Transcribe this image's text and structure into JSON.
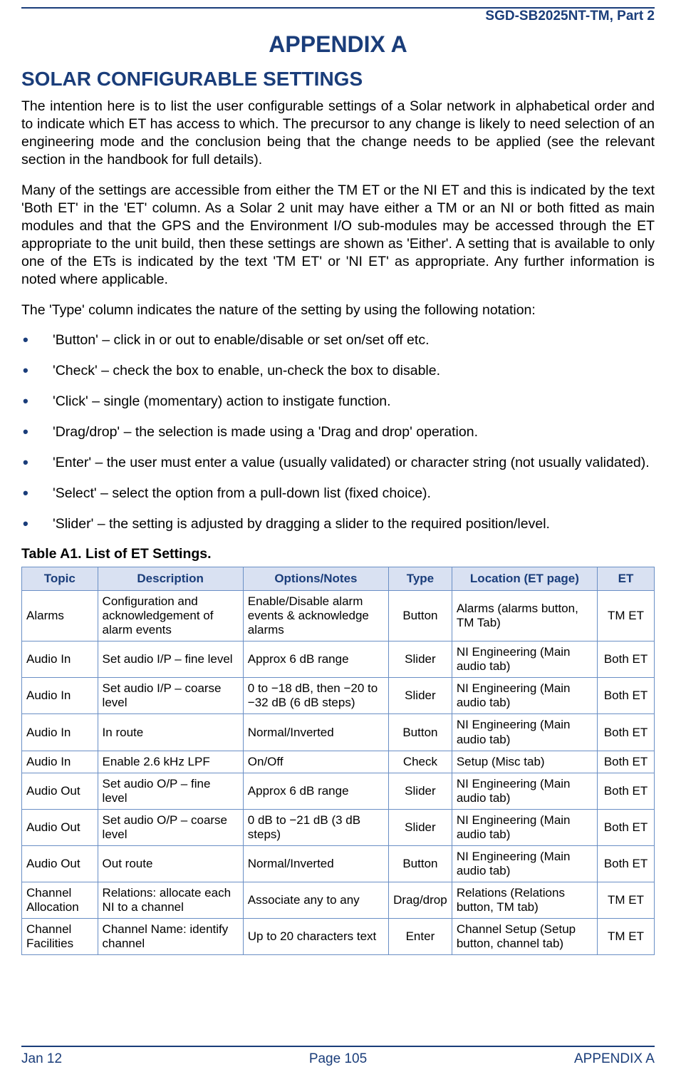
{
  "header": {
    "doc_id": "SGD-SB2025NT-TM, Part 2",
    "appendix_title": "APPENDIX A",
    "section_title": "SOLAR CONFIGURABLE SETTINGS"
  },
  "paragraphs": {
    "p1": "The intention here is to list the user configurable settings of a Solar network in alphabetical order and to indicate which ET has access to which.  The precursor to any change is likely to need selection of an engineering mode and the conclusion being that the change needs to be applied (see the relevant section in the handbook for full details).",
    "p2": "Many of the settings are accessible from either the TM ET or the NI ET and this is indicated by the text 'Both ET' in the 'ET' column.  As a Solar 2 unit may have either a TM or an NI or both fitted as main modules and that the GPS and the Environment I/O sub-modules may be accessed through the ET appropriate to the unit build, then these settings are shown as 'Either'.  A setting that is available to only one of the ETs is indicated by the text 'TM ET' or 'NI ET' as appropriate.  Any further information is noted where applicable.",
    "p3": "The 'Type' column indicates the nature of the setting by using the following notation:"
  },
  "bullets": [
    "'Button' – click in or out to enable/disable or set on/set off etc.",
    "'Check' – check the box to enable, un-check the box to disable.",
    "'Click' – single (momentary) action to instigate function.",
    "'Drag/drop' – the selection is made using a 'Drag and drop' operation.",
    "'Enter' – the user must enter a value (usually validated) or character string (not usually validated).",
    "'Select' – select the option from a pull-down list (fixed choice).",
    "'Slider' – the setting is adjusted by dragging a slider to the required position/level."
  ],
  "table": {
    "caption": "Table A1.  List of ET Settings.",
    "headers": [
      "Topic",
      "Description",
      "Options/Notes",
      "Type",
      "Location (ET page)",
      "ET"
    ],
    "col_widths": [
      "12%",
      "23%",
      "23%",
      "10%",
      "23%",
      "9%"
    ],
    "rows": [
      [
        "Alarms",
        "Configuration and acknowledgement of alarm events",
        "Enable/Disable alarm events & acknowledge alarms",
        "Button",
        "Alarms (alarms button, TM Tab)",
        "TM ET"
      ],
      [
        "Audio In",
        "Set audio I/P – fine level",
        "Approx 6 dB range",
        "Slider",
        "NI Engineering (Main audio tab)",
        "Both ET"
      ],
      [
        "Audio In",
        "Set audio I/P – coarse level",
        "0 to −18 dB, then −20 to −32 dB (6 dB steps)",
        "Slider",
        "NI Engineering (Main audio tab)",
        "Both ET"
      ],
      [
        "Audio In",
        "In route",
        "Normal/Inverted",
        "Button",
        "NI Engineering (Main audio tab)",
        "Both ET"
      ],
      [
        "Audio In",
        "Enable 2.6 kHz LPF",
        "On/Off",
        "Check",
        "Setup (Misc tab)",
        "Both ET"
      ],
      [
        "Audio Out",
        "Set audio O/P – fine level",
        "Approx 6 dB range",
        "Slider",
        "NI Engineering (Main audio tab)",
        "Both ET"
      ],
      [
        "Audio Out",
        "Set audio O/P – coarse level",
        "0 dB to −21 dB (3 dB steps)",
        "Slider",
        "NI Engineering (Main audio tab)",
        "Both ET"
      ],
      [
        "Audio Out",
        "Out route",
        "Normal/Inverted",
        "Button",
        "NI Engineering (Main audio tab)",
        "Both ET"
      ],
      [
        "Channel Allocation",
        "Relations: allocate each NI to a channel",
        "Associate any to any",
        "Drag/drop",
        "Relations (Relations button, TM tab)",
        "TM ET"
      ],
      [
        "Channel Facilities",
        "Channel Name: identify channel",
        "Up to 20 characters text",
        "Enter",
        "Channel Setup (Setup button, channel tab)",
        "TM ET"
      ]
    ]
  },
  "footer": {
    "left": "Jan 12",
    "center": "Page 105",
    "right": "APPENDIX A"
  },
  "colors": {
    "accent": "#1a3d7a",
    "table_border": "#6a8fc5",
    "table_header_bg": "#d9e1f2"
  }
}
